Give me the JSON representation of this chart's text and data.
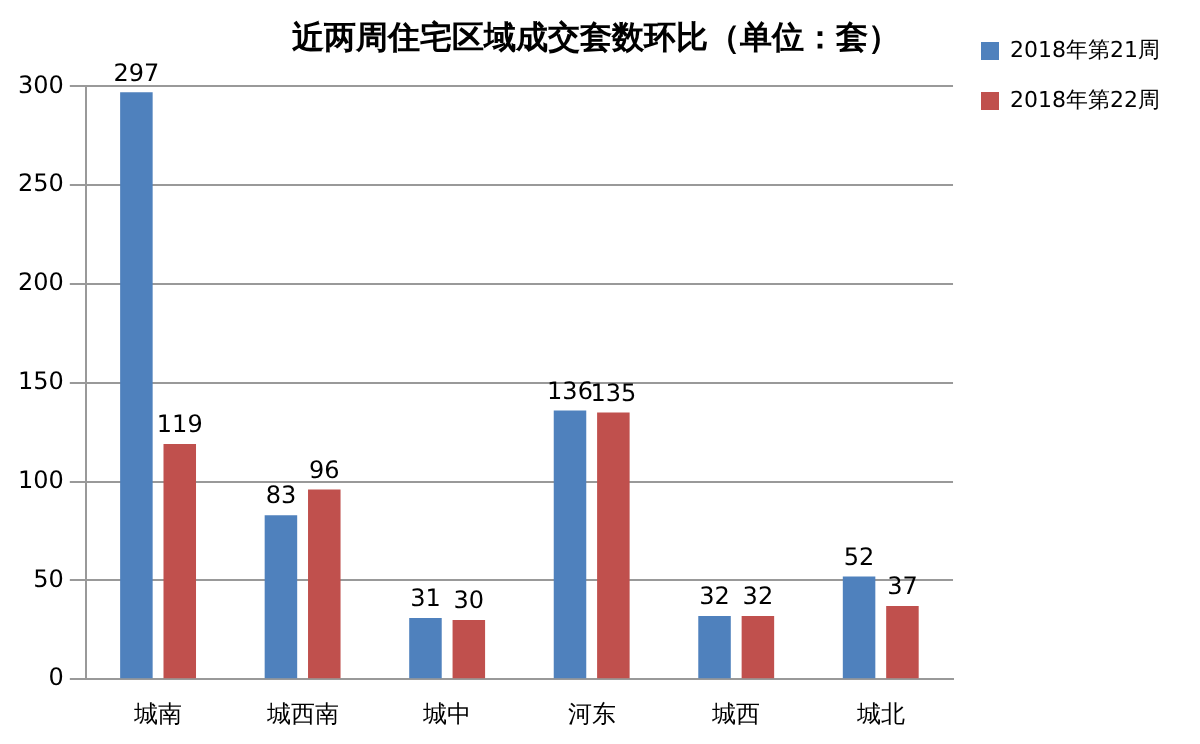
{
  "chart_data": {
    "type": "bar",
    "title": "近两周住宅区域成交套数环比（单位：套）",
    "categories": [
      "城南",
      "城西南",
      "城中",
      "河东",
      "城西",
      "城北"
    ],
    "series": [
      {
        "name": "2018年第21周",
        "color": "#4f81bd",
        "values": [
          297,
          83,
          31,
          136,
          32,
          52
        ]
      },
      {
        "name": "2018年第22周",
        "color": "#c0504d",
        "values": [
          119,
          96,
          30,
          135,
          32,
          37
        ]
      }
    ],
    "ylim": [
      0,
      300
    ],
    "yticks": [
      0,
      50,
      100,
      150,
      200,
      250,
      300
    ],
    "grid": "y",
    "legend": "top right",
    "data_labels": true
  }
}
